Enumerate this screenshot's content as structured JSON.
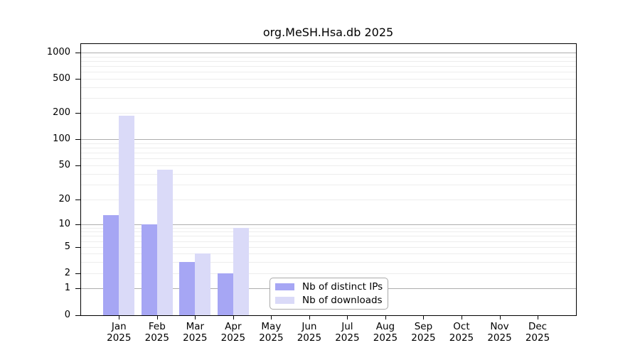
{
  "chart_data": {
    "type": "bar",
    "title": "org.MeSH.Hsa.db 2025",
    "year": "2025",
    "months": [
      "Jan",
      "Feb",
      "Mar",
      "Apr",
      "May",
      "Jun",
      "Jul",
      "Aug",
      "Sep",
      "Oct",
      "Nov",
      "Dec"
    ],
    "series": [
      {
        "name": "Nb of distinct IPs",
        "color": "#a6a6f4",
        "values": [
          13,
          10,
          3,
          2,
          0,
          0,
          0,
          0,
          0,
          0,
          0,
          0
        ]
      },
      {
        "name": "Nb of downloads",
        "color": "#dadaf8",
        "values": [
          185,
          45,
          4,
          9,
          0,
          0,
          0,
          0,
          0,
          0,
          0,
          0
        ]
      }
    ],
    "y_axis": {
      "scale": "log-like",
      "tick_values": [
        1000,
        500,
        200,
        100,
        50,
        20,
        10,
        5,
        2,
        1,
        0
      ],
      "tick_labels": [
        "1000",
        "500",
        "200",
        "100",
        "50",
        "20",
        "10",
        "5",
        "2",
        "1",
        "0"
      ]
    },
    "x_axis": {
      "tick_label_line2": "2025"
    },
    "legend": {
      "entries": [
        "Nb of distinct IPs",
        "Nb of downloads"
      ],
      "position": "bottom-center"
    },
    "grid": true,
    "ylim": [
      0,
      1000
    ]
  }
}
